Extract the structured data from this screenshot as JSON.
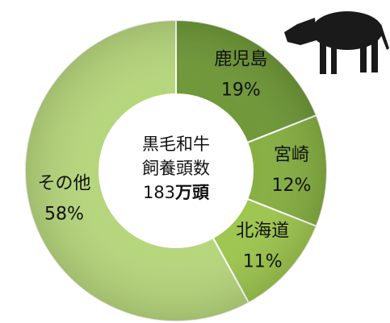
{
  "chart_data": {
    "type": "donut",
    "categories": [
      "鹿児島",
      "宮崎",
      "北海道",
      "その他"
    ],
    "values": [
      19,
      12,
      11,
      58
    ],
    "value_labels": [
      "19%",
      "12%",
      "11%",
      "58%"
    ],
    "colors": [
      "#6f9838",
      "#86af42",
      "#9ec64f",
      "#b6d67c"
    ],
    "center_lines": [
      "黒毛和牛",
      "飼養頭数"
    ],
    "total": 183,
    "total_unit": "万頭"
  }
}
